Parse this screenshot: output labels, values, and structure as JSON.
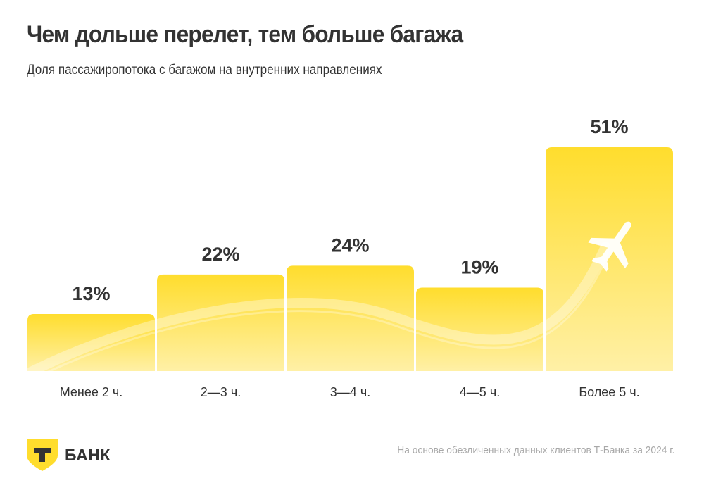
{
  "header": {
    "title": "Чем дольше перелет, тем больше багажа",
    "subtitle": "Доля пассажиропотока с багажом на внутренних направлениях"
  },
  "chart_data": {
    "type": "bar",
    "title": "Чем дольше перелет, тем больше багажа",
    "subtitle": "Доля пассажиропотока с багажом на внутренних направлениях",
    "xlabel": "",
    "ylabel": "",
    "unit": "%",
    "ylim": [
      0,
      51
    ],
    "grid": false,
    "categories": [
      "Менее 2 ч.",
      "2—3 ч.",
      "3—4 ч.",
      "4—5 ч.",
      "Более 5 ч."
    ],
    "values": [
      13,
      22,
      24,
      19,
      51
    ],
    "labels": [
      "13%",
      "22%",
      "24%",
      "19%",
      "51%"
    ],
    "colors": {
      "bar_top": "#ffdd2d",
      "bar_bottom": "#fff0a6",
      "text": "#333333"
    }
  },
  "decoration": {
    "icon": "airplane-icon"
  },
  "footer": {
    "logo_text": "БАНК",
    "logo_letter": "Т",
    "note": "На основе обезличенных данных клиентов Т-Банка за 2024 г."
  }
}
